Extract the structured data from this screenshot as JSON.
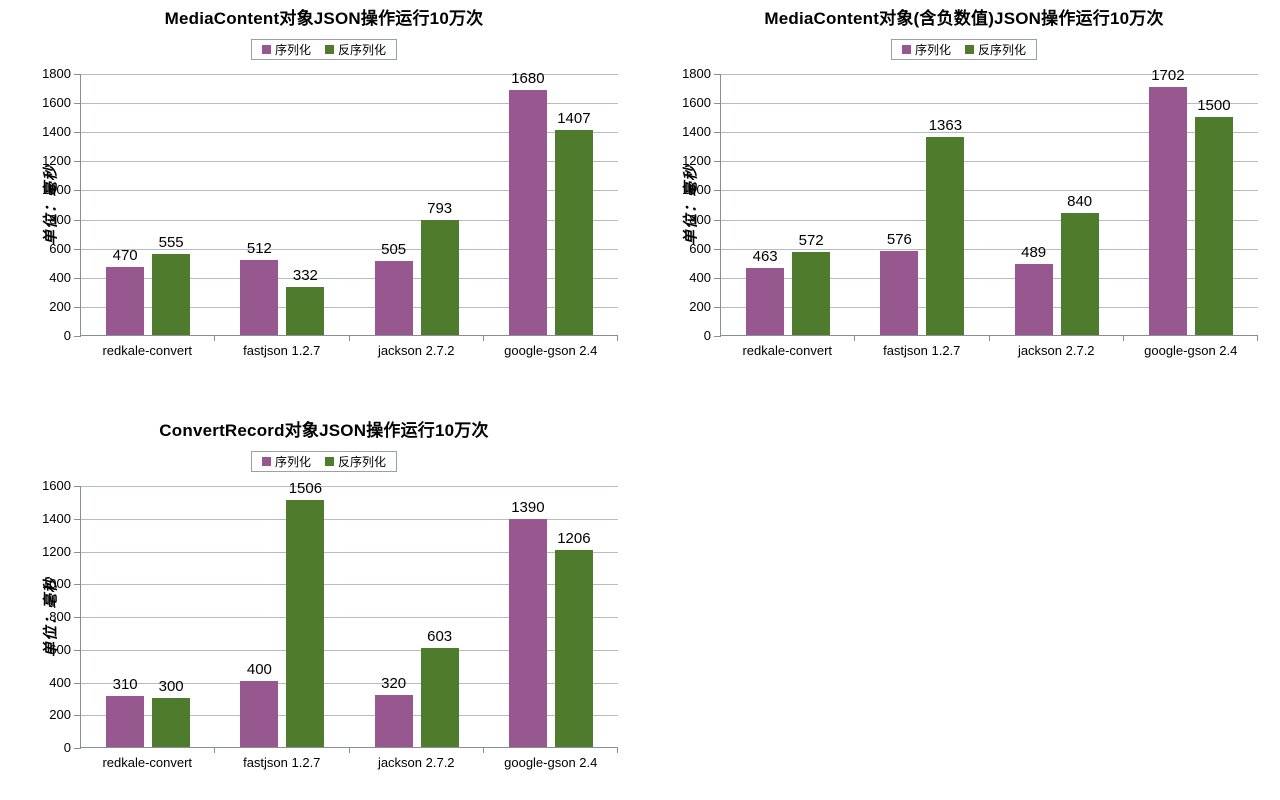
{
  "page": {
    "background": "#ffffff"
  },
  "legend": {
    "serialize_label": "序列化",
    "deserialize_label": "反序列化"
  },
  "colors": {
    "serialize": "#96588f",
    "deserialize": "#4e7b2c",
    "gridline": "#b6bbc6",
    "axis": "#878d99"
  },
  "chart_data": [
    {
      "type": "bar",
      "title": "MediaContent对象JSON操作运行10万次",
      "categories": [
        "redkale-convert",
        "fastjson 1.2.7",
        "jackson 2.7.2",
        "google-gson 2.4"
      ],
      "series": [
        {
          "name": "序列化",
          "color": "#96588f",
          "values": [
            470,
            512,
            505,
            1680
          ]
        },
        {
          "name": "反序列化",
          "color": "#4e7b2c",
          "values": [
            555,
            332,
            793,
            1407
          ]
        }
      ],
      "xlabel": "",
      "ylabel": "单位：毫秒",
      "ylim": [
        0,
        1800
      ],
      "ytick_step": 200,
      "grid": true,
      "legend_position": "top"
    },
    {
      "type": "bar",
      "title": "MediaContent对象(含负数值)JSON操作运行10万次",
      "categories": [
        "redkale-convert",
        "fastjson 1.2.7",
        "jackson 2.7.2",
        "google-gson 2.4"
      ],
      "series": [
        {
          "name": "序列化",
          "color": "#96588f",
          "values": [
            463,
            576,
            489,
            1702
          ]
        },
        {
          "name": "反序列化",
          "color": "#4e7b2c",
          "values": [
            572,
            1363,
            840,
            1500
          ]
        }
      ],
      "xlabel": "",
      "ylabel": "单位：毫秒",
      "ylim": [
        0,
        1800
      ],
      "ytick_step": 200,
      "grid": true,
      "legend_position": "top"
    },
    {
      "type": "bar",
      "title": "ConvertRecord对象JSON操作运行10万次",
      "categories": [
        "redkale-convert",
        "fastjson 1.2.7",
        "jackson 2.7.2",
        "google-gson 2.4"
      ],
      "series": [
        {
          "name": "序列化",
          "color": "#96588f",
          "values": [
            310,
            400,
            320,
            1390
          ]
        },
        {
          "name": "反序列化",
          "color": "#4e7b2c",
          "values": [
            300,
            1506,
            603,
            1206
          ]
        }
      ],
      "xlabel": "",
      "ylabel": "单位：毫秒",
      "ylim": [
        0,
        1600
      ],
      "ytick_step": 200,
      "grid": true,
      "legend_position": "top"
    }
  ]
}
